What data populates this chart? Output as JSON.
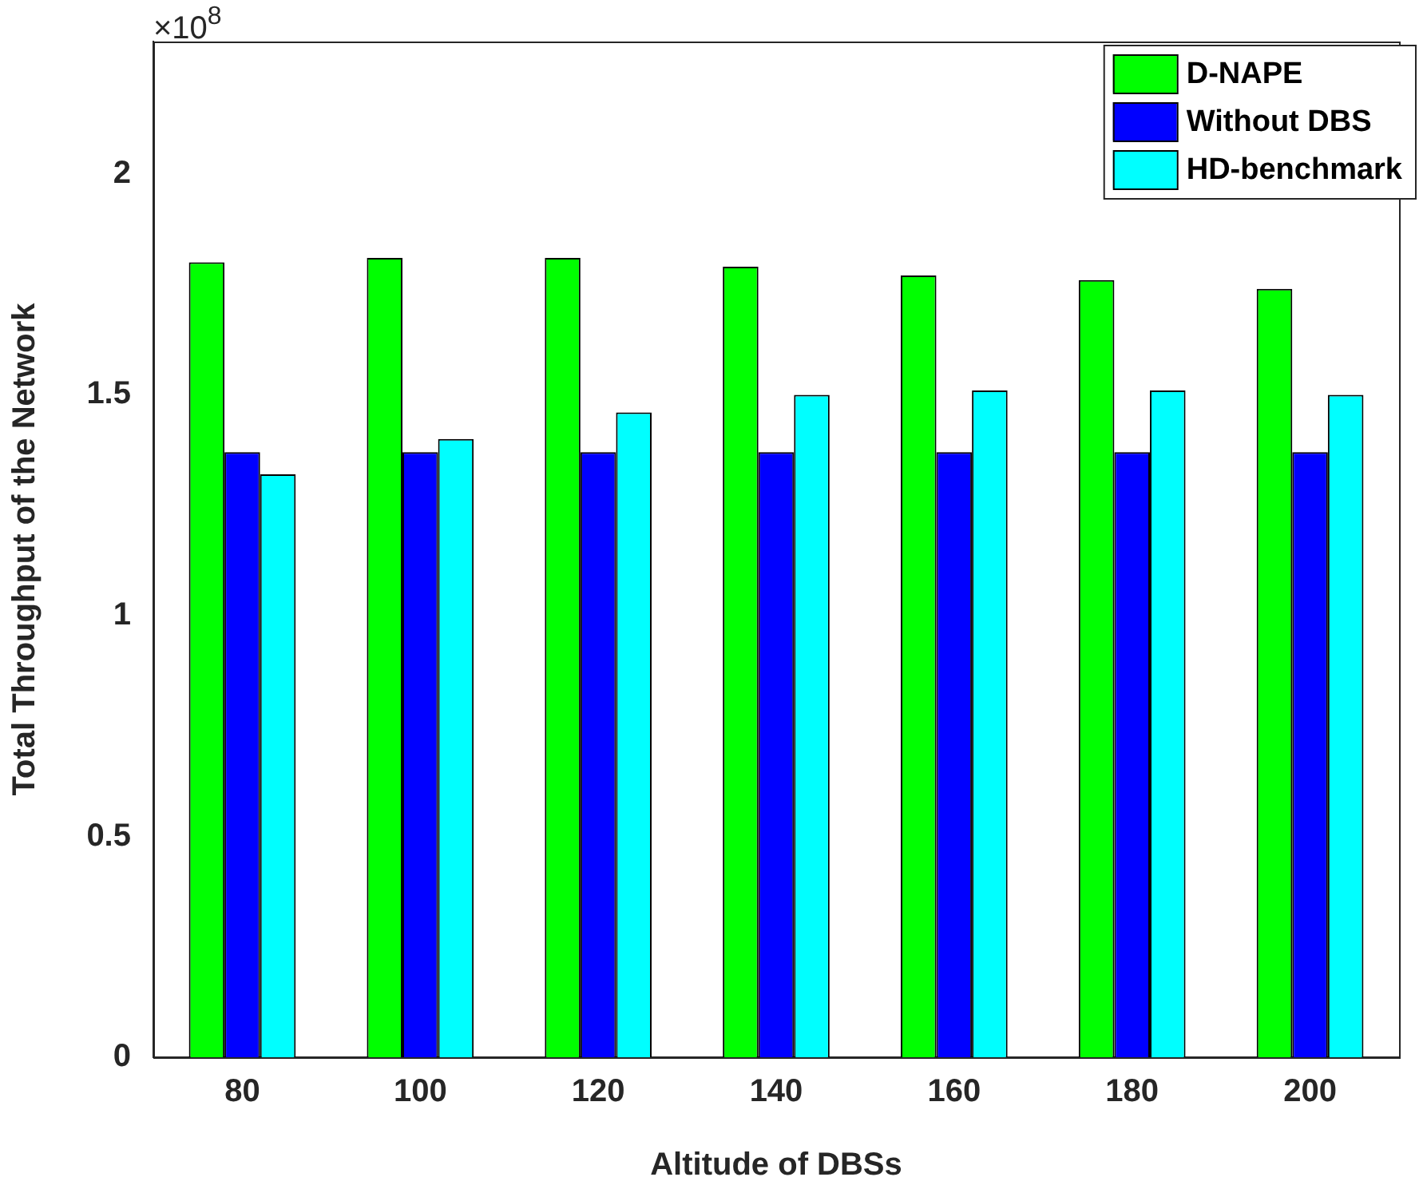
{
  "chart_data": {
    "type": "bar",
    "xlabel": "Altitude of DBSs",
    "ylabel": "Total Throughput of the Network",
    "categories": [
      "80",
      "100",
      "120",
      "140",
      "160",
      "180",
      "200"
    ],
    "series": [
      {
        "name": "D-NAPE",
        "color": "#00ff00",
        "values": [
          1.8,
          1.81,
          1.81,
          1.79,
          1.77,
          1.76,
          1.74
        ]
      },
      {
        "name": "Without DBS",
        "color": "#0000ff",
        "values": [
          1.37,
          1.37,
          1.37,
          1.37,
          1.37,
          1.37,
          1.37
        ]
      },
      {
        "name": "HD-benchmark",
        "color": "#00ffff",
        "values": [
          1.32,
          1.4,
          1.46,
          1.5,
          1.51,
          1.51,
          1.5
        ]
      }
    ],
    "ylim": [
      0,
      2.3
    ],
    "yticks": [
      0,
      0.5,
      1,
      1.5,
      2
    ],
    "grid": false,
    "legend": "top right",
    "annotations": [
      "×10$^{8}$"
    ]
  }
}
